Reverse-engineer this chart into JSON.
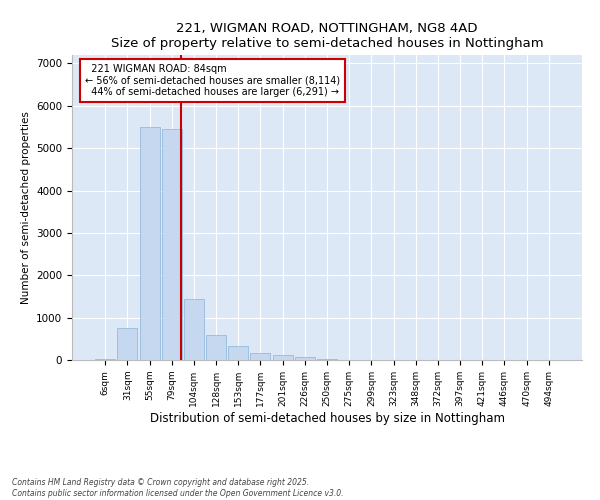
{
  "title": "221, WIGMAN ROAD, NOTTINGHAM, NG8 4AD",
  "subtitle": "Size of property relative to semi-detached houses in Nottingham",
  "xlabel": "Distribution of semi-detached houses by size in Nottingham",
  "ylabel": "Number of semi-detached properties",
  "categories": [
    "6sqm",
    "31sqm",
    "55sqm",
    "79sqm",
    "104sqm",
    "128sqm",
    "153sqm",
    "177sqm",
    "201sqm",
    "226sqm",
    "250sqm",
    "275sqm",
    "299sqm",
    "323sqm",
    "348sqm",
    "372sqm",
    "397sqm",
    "421sqm",
    "446sqm",
    "470sqm",
    "494sqm"
  ],
  "values": [
    30,
    750,
    5500,
    5450,
    1450,
    600,
    330,
    175,
    110,
    70,
    30,
    5,
    2,
    1,
    0,
    0,
    0,
    0,
    0,
    0,
    0
  ],
  "bar_color": "#c5d8f0",
  "bar_edge_color": "#8ab4d8",
  "background_color": "#dce8f5",
  "figure_background": "#ffffff",
  "property_label": "221 WIGMAN ROAD: 84sqm",
  "pct_smaller": 56,
  "pct_larger": 44,
  "n_smaller": 8114,
  "n_larger": 6291,
  "vline_color": "#cc0000",
  "vline_x": 3.42,
  "annotation_box_color": "#cc0000",
  "ylim": [
    0,
    7200
  ],
  "yticks": [
    0,
    1000,
    2000,
    3000,
    4000,
    5000,
    6000,
    7000
  ],
  "footer_line1": "Contains HM Land Registry data © Crown copyright and database right 2025.",
  "footer_line2": "Contains public sector information licensed under the Open Government Licence v3.0."
}
